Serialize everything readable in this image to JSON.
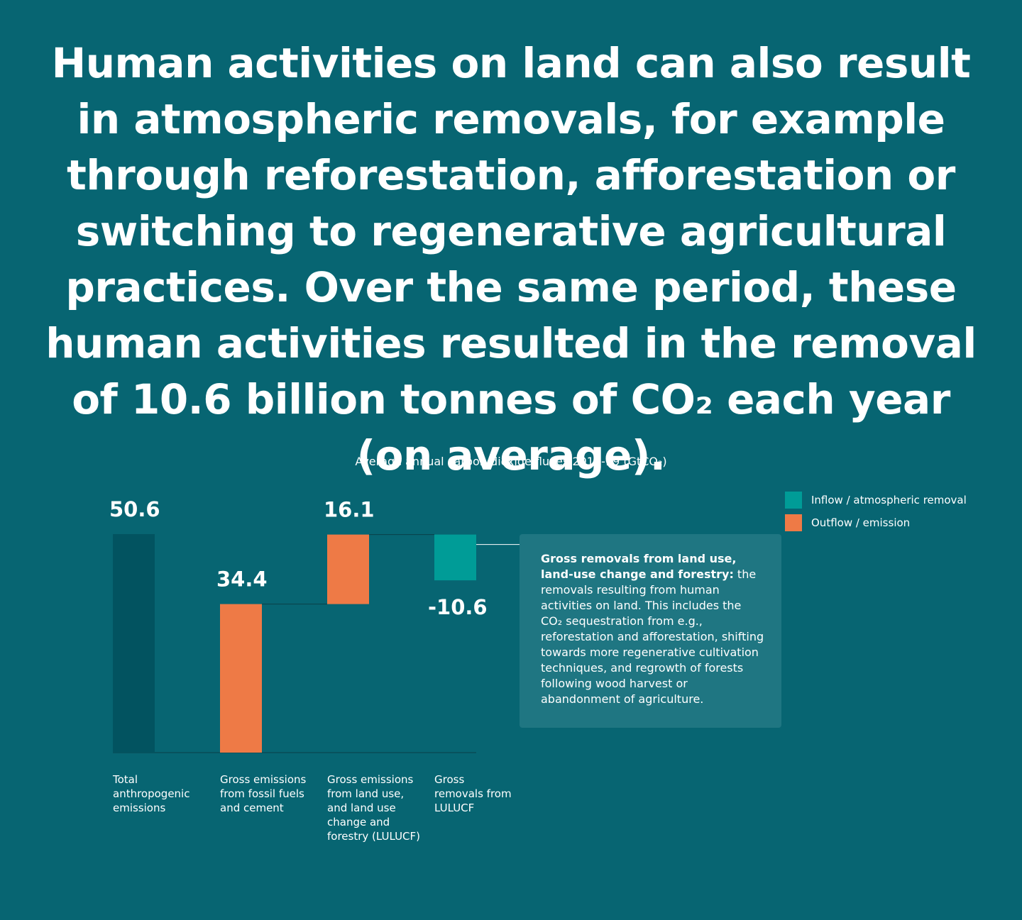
{
  "headline": "Human activities on land can also result in atmospheric removals, for example through reforestation, afforestation or switching to regenerative agricultural practices. Over the same period, these human activities resulted in the removal of 10.6 billion tonnes of CO₂ each year (on average).",
  "chart_data": {
    "type": "bar",
    "subtype": "waterfall",
    "title": "Average annual carbon dioxide fluxes 2010-19 (GtCO₂)",
    "categories": [
      "Total anthropogenic emissions",
      "Gross emissions from fossil fuels and cement",
      "Gross emissions from land use, and land use change and forestry (LULUCF)",
      "Gross removals from LULUCF"
    ],
    "values": [
      50.6,
      34.4,
      16.1,
      -10.6
    ],
    "value_labels": [
      "50.6",
      "34.4",
      "16.1",
      "-10.6"
    ],
    "bar_roles": [
      "total",
      "outflow",
      "outflow",
      "inflow"
    ],
    "ylim": [
      0,
      50.6
    ],
    "grid": false,
    "legend_position": "top-right",
    "legend": [
      {
        "label": "Inflow / atmospheric removal",
        "color": "#009c97"
      },
      {
        "label": "Outflow / emission",
        "color": "#ee7a46"
      }
    ],
    "colors": {
      "total": "#025360",
      "outflow": "#ee7a46",
      "inflow": "#009c97",
      "connector": "#0a3f48"
    }
  },
  "annotation": {
    "bold": "Gross removals from land use, land-use change and forestry:",
    "text": " the removals resulting from human activities on land. This includes the CO₂ sequestration from e.g., reforestation and afforestation, shifting towards more regenerative cultivation techniques, and regrowth of forests following wood harvest or abandonment of agriculture."
  }
}
